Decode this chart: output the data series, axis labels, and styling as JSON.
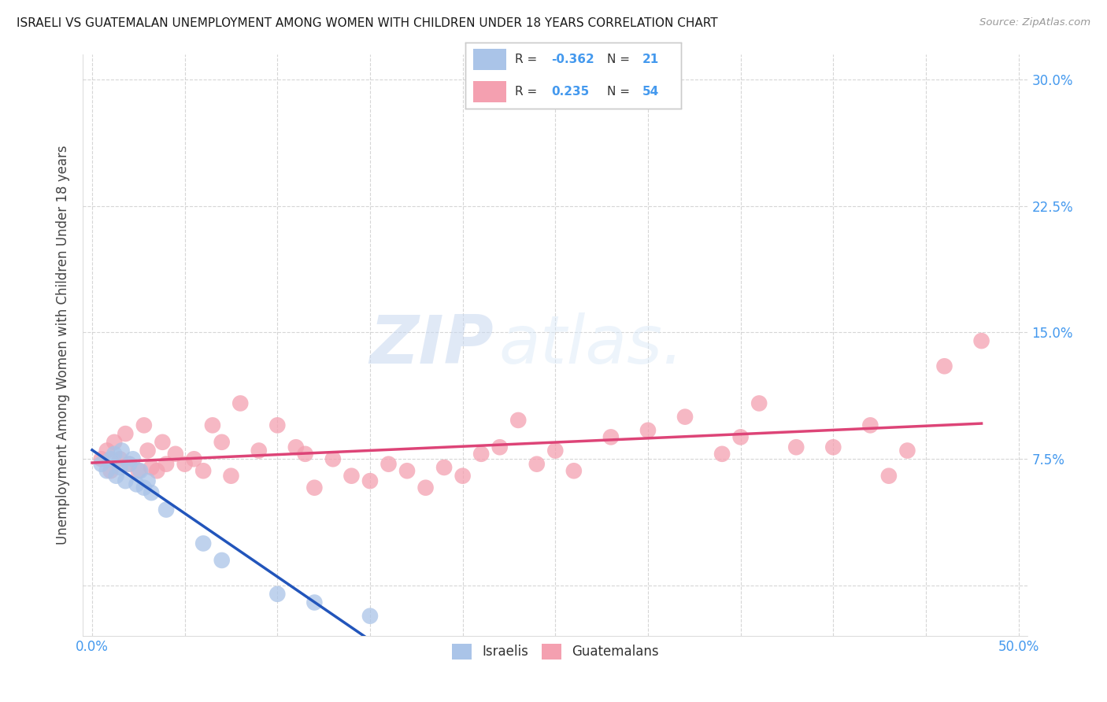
{
  "title": "ISRAELI VS GUATEMALAN UNEMPLOYMENT AMONG WOMEN WITH CHILDREN UNDER 18 YEARS CORRELATION CHART",
  "source": "Source: ZipAtlas.com",
  "ylabel": "Unemployment Among Women with Children Under 18 years",
  "xlim": [
    -0.005,
    0.505
  ],
  "ylim": [
    -0.03,
    0.315
  ],
  "xticks": [
    0.0,
    0.05,
    0.1,
    0.15,
    0.2,
    0.25,
    0.3,
    0.35,
    0.4,
    0.45,
    0.5
  ],
  "yticks": [
    0.0,
    0.075,
    0.15,
    0.225,
    0.3
  ],
  "grid_color": "#cccccc",
  "background_color": "#ffffff",
  "israeli_color": "#aac4e8",
  "guatemalan_color": "#f4a0b0",
  "israeli_line_color": "#2255bb",
  "guatemalan_line_color": "#dd4477",
  "tick_color": "#4499ee",
  "watermark_zip": "ZIP",
  "watermark_atlas": "atlas.",
  "israeli_x": [
    0.005,
    0.008,
    0.01,
    0.012,
    0.013,
    0.015,
    0.016,
    0.018,
    0.02,
    0.022,
    0.024,
    0.026,
    0.028,
    0.03,
    0.032,
    0.04,
    0.06,
    0.07,
    0.1,
    0.12,
    0.15
  ],
  "israeli_y": [
    0.072,
    0.068,
    0.075,
    0.078,
    0.065,
    0.07,
    0.08,
    0.062,
    0.072,
    0.075,
    0.06,
    0.068,
    0.058,
    0.062,
    0.055,
    0.045,
    0.025,
    0.015,
    -0.005,
    -0.01,
    -0.018
  ],
  "guatemalan_x": [
    0.005,
    0.008,
    0.01,
    0.012,
    0.015,
    0.018,
    0.02,
    0.025,
    0.028,
    0.03,
    0.032,
    0.035,
    0.038,
    0.04,
    0.045,
    0.05,
    0.055,
    0.06,
    0.065,
    0.07,
    0.075,
    0.08,
    0.09,
    0.1,
    0.11,
    0.115,
    0.12,
    0.13,
    0.14,
    0.15,
    0.16,
    0.17,
    0.18,
    0.19,
    0.2,
    0.21,
    0.22,
    0.23,
    0.24,
    0.25,
    0.26,
    0.28,
    0.3,
    0.32,
    0.34,
    0.35,
    0.36,
    0.38,
    0.4,
    0.42,
    0.43,
    0.44,
    0.46,
    0.48
  ],
  "guatemalan_y": [
    0.075,
    0.08,
    0.068,
    0.085,
    0.075,
    0.09,
    0.072,
    0.068,
    0.095,
    0.08,
    0.07,
    0.068,
    0.085,
    0.072,
    0.078,
    0.072,
    0.075,
    0.068,
    0.095,
    0.085,
    0.065,
    0.108,
    0.08,
    0.095,
    0.082,
    0.078,
    0.058,
    0.075,
    0.065,
    0.062,
    0.072,
    0.068,
    0.058,
    0.07,
    0.065,
    0.078,
    0.082,
    0.098,
    0.072,
    0.08,
    0.068,
    0.088,
    0.092,
    0.1,
    0.078,
    0.088,
    0.108,
    0.082,
    0.082,
    0.095,
    0.065,
    0.08,
    0.13,
    0.145
  ]
}
